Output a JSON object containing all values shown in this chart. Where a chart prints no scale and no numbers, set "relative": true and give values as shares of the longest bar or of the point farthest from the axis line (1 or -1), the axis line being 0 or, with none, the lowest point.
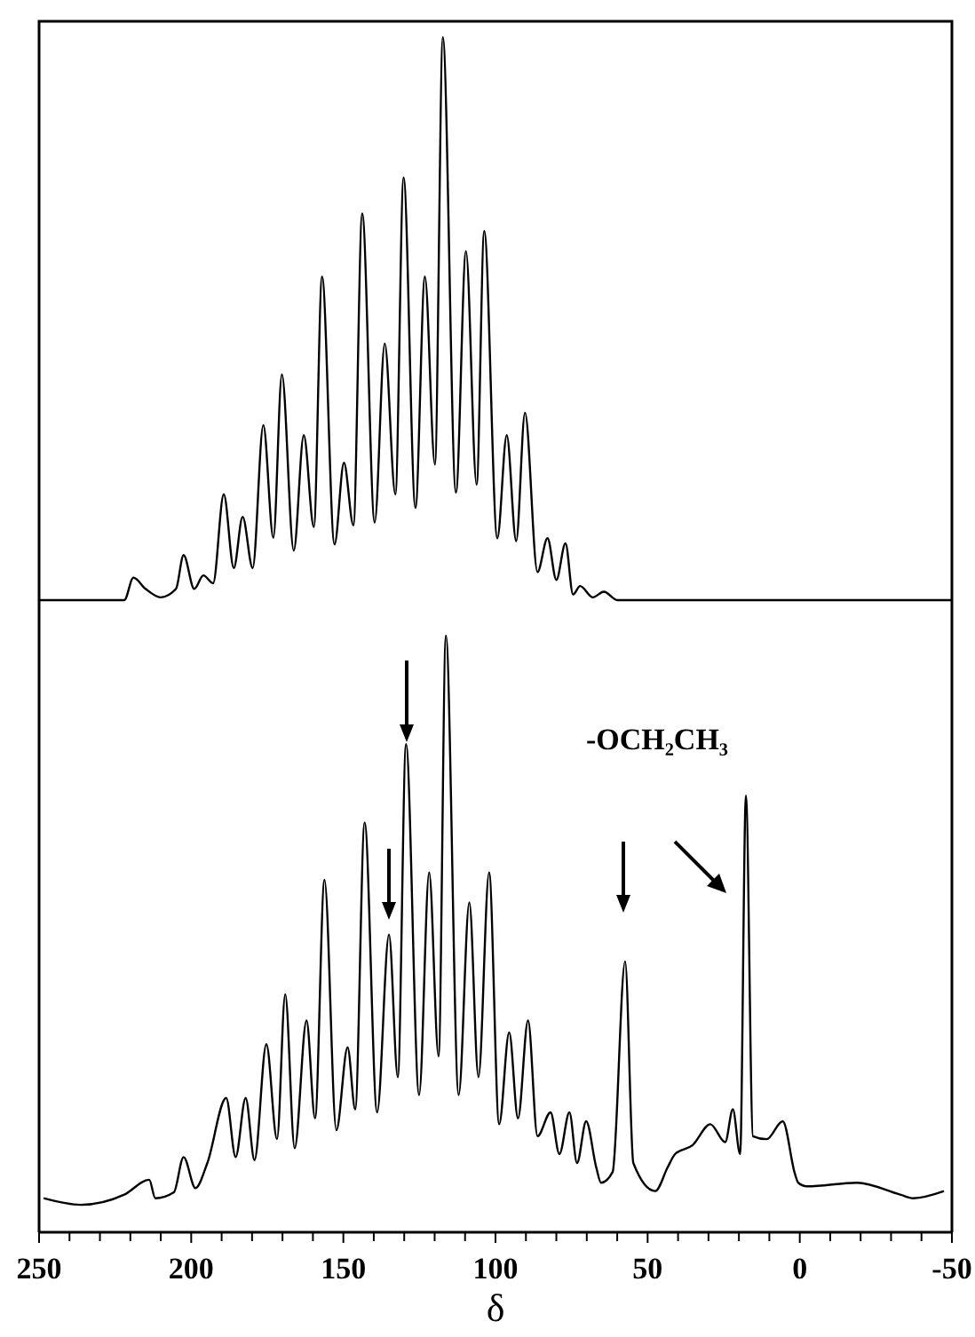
{
  "chart_data": [
    {
      "type": "line",
      "relative": true,
      "xlim": [
        250,
        -50
      ],
      "series": [
        {
          "color": "#000000",
          "x": [
            250,
            222,
            219,
            215,
            210,
            205,
            202.5,
            199,
            196,
            192.8,
            189.3,
            186,
            183.1,
            179.8,
            176.3,
            173,
            170.2,
            166.3,
            163,
            159.7,
            157,
            152.9,
            149.8,
            146.7,
            143.8,
            139.7,
            136.4,
            132.9,
            130.2,
            126.3,
            123.2,
            119.9,
            117.3,
            113,
            109.7,
            106.2,
            103.7,
            99.4,
            96.3,
            93.2,
            90.3,
            86.2,
            82.9,
            80,
            77,
            74.5,
            72.2,
            68,
            64.4,
            60,
            -50
          ],
          "values": [
            0,
            0,
            0.04,
            0.02,
            0.005,
            0.02,
            0.08,
            0.02,
            0.044,
            0.03,
            0.188,
            0.057,
            0.148,
            0.057,
            0.311,
            0.111,
            0.401,
            0.088,
            0.293,
            0.13,
            0.575,
            0.099,
            0.244,
            0.133,
            0.687,
            0.138,
            0.456,
            0.188,
            0.751,
            0.164,
            0.575,
            0.241,
            1,
            0.191,
            0.62,
            0.205,
            0.656,
            0.11,
            0.293,
            0.105,
            0.333,
            0.05,
            0.11,
            0.036,
            0.101,
            0.01,
            0.025,
            0.005,
            0.015,
            0,
            0
          ]
        }
      ]
    },
    {
      "type": "line",
      "relative": true,
      "xlim": [
        250,
        -50
      ],
      "xlabel": "δ",
      "xticks": [
        250,
        {
          "value": 240,
          "label": null
        },
        {
          "value": 230,
          "label": null
        },
        {
          "value": 220,
          "label": null
        },
        {
          "value": 210,
          "label": null
        },
        200,
        {
          "value": 190,
          "label": null
        },
        {
          "value": 180,
          "label": null
        },
        {
          "value": 170,
          "label": null
        },
        {
          "value": 160,
          "label": null
        },
        150,
        {
          "value": 140,
          "label": null
        },
        {
          "value": 130,
          "label": null
        },
        {
          "value": 120,
          "label": null
        },
        {
          "value": 110,
          "label": null
        },
        100,
        {
          "value": 90,
          "label": null
        },
        {
          "value": 80,
          "label": null
        },
        {
          "value": 70,
          "label": null
        },
        {
          "value": 60,
          "label": null
        },
        50,
        {
          "value": 40,
          "label": null
        },
        {
          "value": 30,
          "label": null
        },
        {
          "value": 20,
          "label": null
        },
        {
          "value": 10,
          "label": null
        },
        0,
        {
          "value": -10,
          "label": null
        },
        {
          "value": -20,
          "label": null
        },
        {
          "value": -30,
          "label": null
        },
        {
          "value": -40,
          "label": null
        },
        -50
      ],
      "annotations": [
        "-OCH₂CH₃"
      ],
      "series": [
        {
          "color": "#000000",
          "x": [
            248.5,
            236.3,
            222,
            213.8,
            211.8,
            205.7,
            202.5,
            198.6,
            194.7,
            188.5,
            185.4,
            182.1,
            179.2,
            175.3,
            171.8,
            169.1,
            166,
            162.1,
            159.3,
            156.2,
            152.3,
            148.6,
            146.1,
            143,
            138.9,
            135,
            132.1,
            129.4,
            125.1,
            121.8,
            118.7,
            116.3,
            112.1,
            108.6,
            105.6,
            102.1,
            98.8,
            95.5,
            92.6,
            89.3,
            86.2,
            81.9,
            79,
            75.7,
            73.2,
            70.2,
            66.9,
            65.3,
            61.5,
            57.4,
            54.7,
            47.5,
            43.4,
            41,
            35.2,
            29.4,
            24.5,
            22,
            19.6,
            17.7,
            15.4,
            10.9,
            5.6,
            1.6,
            0.5,
            -2.4,
            -18.8,
            -33,
            -37.3,
            -47.4
          ],
          "values": [
            0.057,
            0.046,
            0.063,
            0.088,
            0.057,
            0.067,
            0.126,
            0.074,
            0.116,
            0.225,
            0.126,
            0.225,
            0.121,
            0.315,
            0.156,
            0.399,
            0.141,
            0.355,
            0.191,
            0.591,
            0.171,
            0.31,
            0.206,
            0.687,
            0.201,
            0.499,
            0.26,
            0.818,
            0.23,
            0.603,
            0.295,
            1,
            0.23,
            0.553,
            0.26,
            0.603,
            0.181,
            0.335,
            0.191,
            0.355,
            0.161,
            0.201,
            0.131,
            0.201,
            0.116,
            0.186,
            0.109,
            0.083,
            0.101,
            0.454,
            0.116,
            0.069,
            0.109,
            0.131,
            0.146,
            0.181,
            0.151,
            0.206,
            0.131,
            0.732,
            0.161,
            0.156,
            0.186,
            0.098,
            0.083,
            0.077,
            0.083,
            0.063,
            0.057,
            0.069
          ]
        }
      ]
    }
  ]
}
